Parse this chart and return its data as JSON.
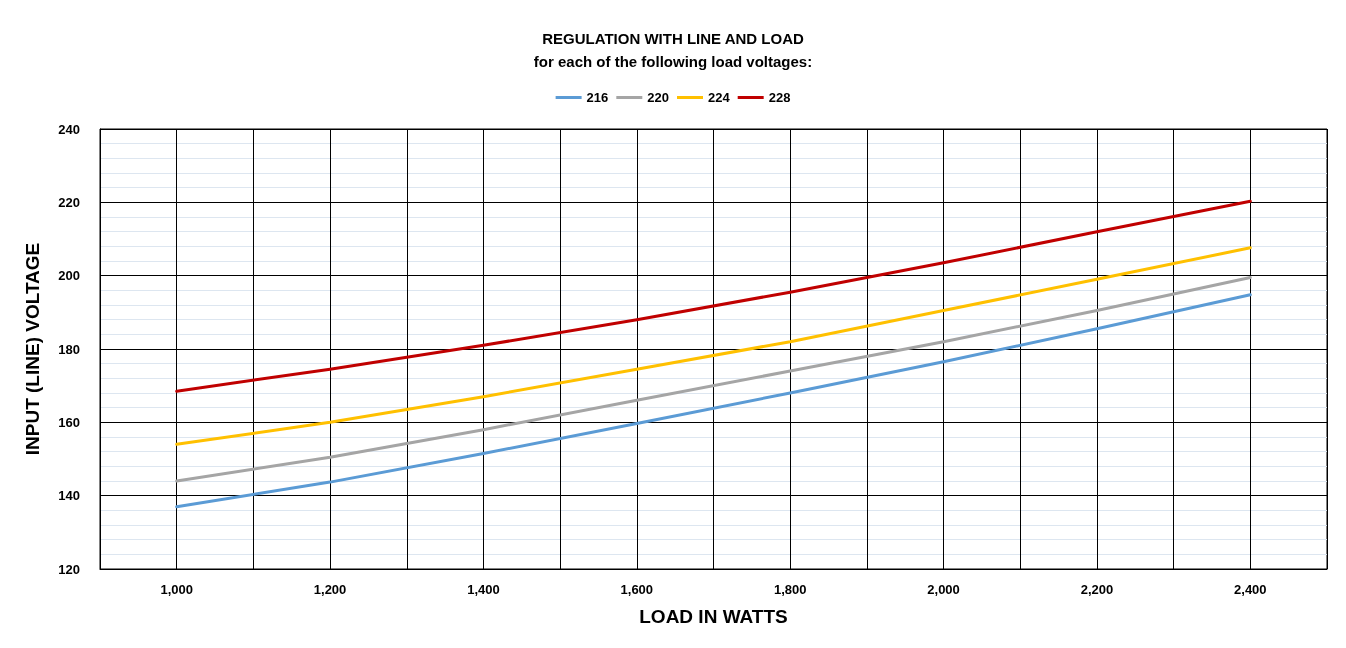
{
  "chart_data": {
    "type": "line",
    "title": "REGULATION WITH LINE AND LOAD",
    "subtitle": "for each of the following load voltages:",
    "xlabel": "LOAD IN WATTS",
    "ylabel": "INPUT (LINE) VOLTAGE",
    "x": [
      1000,
      1200,
      1400,
      1600,
      1800,
      2000,
      2200,
      2400
    ],
    "series": [
      {
        "name": "216",
        "color": "#5b9bd5",
        "values": [
          137,
          143.7,
          151.5,
          159.7,
          168,
          176.5,
          185.5,
          194.8
        ]
      },
      {
        "name": "220",
        "color": "#a5a5a5",
        "values": [
          144,
          150.5,
          158,
          166,
          174,
          182,
          190.5,
          199.5
        ]
      },
      {
        "name": "224",
        "color": "#ffc000",
        "values": [
          154,
          160,
          167,
          174.5,
          182,
          190.5,
          199,
          207.6
        ]
      },
      {
        "name": "228",
        "color": "#c00000",
        "values": [
          168.5,
          174.5,
          181,
          188,
          195.5,
          203.5,
          212,
          220.3
        ]
      }
    ],
    "xlim": [
      900,
      2500
    ],
    "xticks": [
      {
        "value": 1000,
        "label": "1,000"
      },
      {
        "value": 1100,
        "label": null
      },
      {
        "value": 1200,
        "label": "1,200"
      },
      {
        "value": 1300,
        "label": null
      },
      {
        "value": 1400,
        "label": "1,400"
      },
      {
        "value": 1500,
        "label": null
      },
      {
        "value": 1600,
        "label": "1,600"
      },
      {
        "value": 1700,
        "label": null
      },
      {
        "value": 1800,
        "label": "1,800"
      },
      {
        "value": 1900,
        "label": null
      },
      {
        "value": 2000,
        "label": "2,000"
      },
      {
        "value": 2100,
        "label": null
      },
      {
        "value": 2200,
        "label": "2,200"
      },
      {
        "value": 2300,
        "label": null
      },
      {
        "value": 2400,
        "label": "2,400"
      }
    ],
    "ylim": [
      120,
      240
    ],
    "yticks": [
      120,
      140,
      160,
      180,
      200,
      220,
      240
    ],
    "grid": true,
    "legend": "top",
    "marker": "none",
    "line_style": "solid"
  }
}
